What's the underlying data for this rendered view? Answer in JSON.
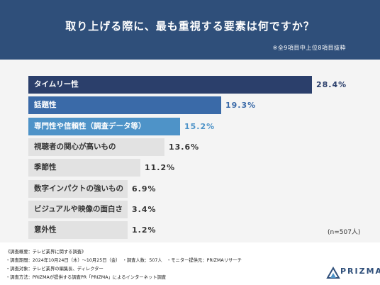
{
  "header": {
    "title": "取り上げる際に、最も重視する要素は何ですか？",
    "note": "※全9項目中上位8項目抜粋"
  },
  "chart_data": {
    "type": "bar",
    "categories": [
      "タイムリー性",
      "話題性",
      "専門性や信頼性（調査データ等）",
      "視聴者の関心が高いもの",
      "季節性",
      "数字インパクトの強いもの",
      "ビジュアルや映像の面白さ",
      "意外性"
    ],
    "values": [
      28.4,
      19.3,
      15.2,
      13.6,
      11.2,
      6.9,
      3.4,
      1.2
    ],
    "value_labels": [
      "28.4%",
      "19.3%",
      "15.2%",
      "13.6%",
      "11.2%",
      "6.9%",
      "3.4%",
      "1.2%"
    ],
    "bar_colors": [
      "#2b3f6b",
      "#3a6aa8",
      "#4e93c8",
      "#e2e2e2",
      "#e2e2e2",
      "#e2e2e2",
      "#e2e2e2",
      "#e2e2e2"
    ],
    "label_colors": [
      "#ffffff",
      "#ffffff",
      "#ffffff",
      "#333333",
      "#333333",
      "#333333",
      "#333333",
      "#333333"
    ],
    "value_colors": [
      "#2b3f6b",
      "#3a6aa8",
      "#4e93c8",
      "#333333",
      "#333333",
      "#333333",
      "#333333",
      "#333333"
    ],
    "sample_note": "(n=507人)"
  },
  "footer": {
    "lines": [
      "《調査概要：テレビ業界に関する調査》",
      "・調査期間：2024年10月24日（木）～10月25日（金）　・調査人数：507人　・モニター提供元：PRIZMAリサーチ",
      "・調査対象：テレビ業界の編集長、ディレクター",
      "・調査方法：PRIZMAが提供する調査PR「PRIZMA」によるインターネット調査"
    ],
    "logo": "PRIZMA"
  }
}
